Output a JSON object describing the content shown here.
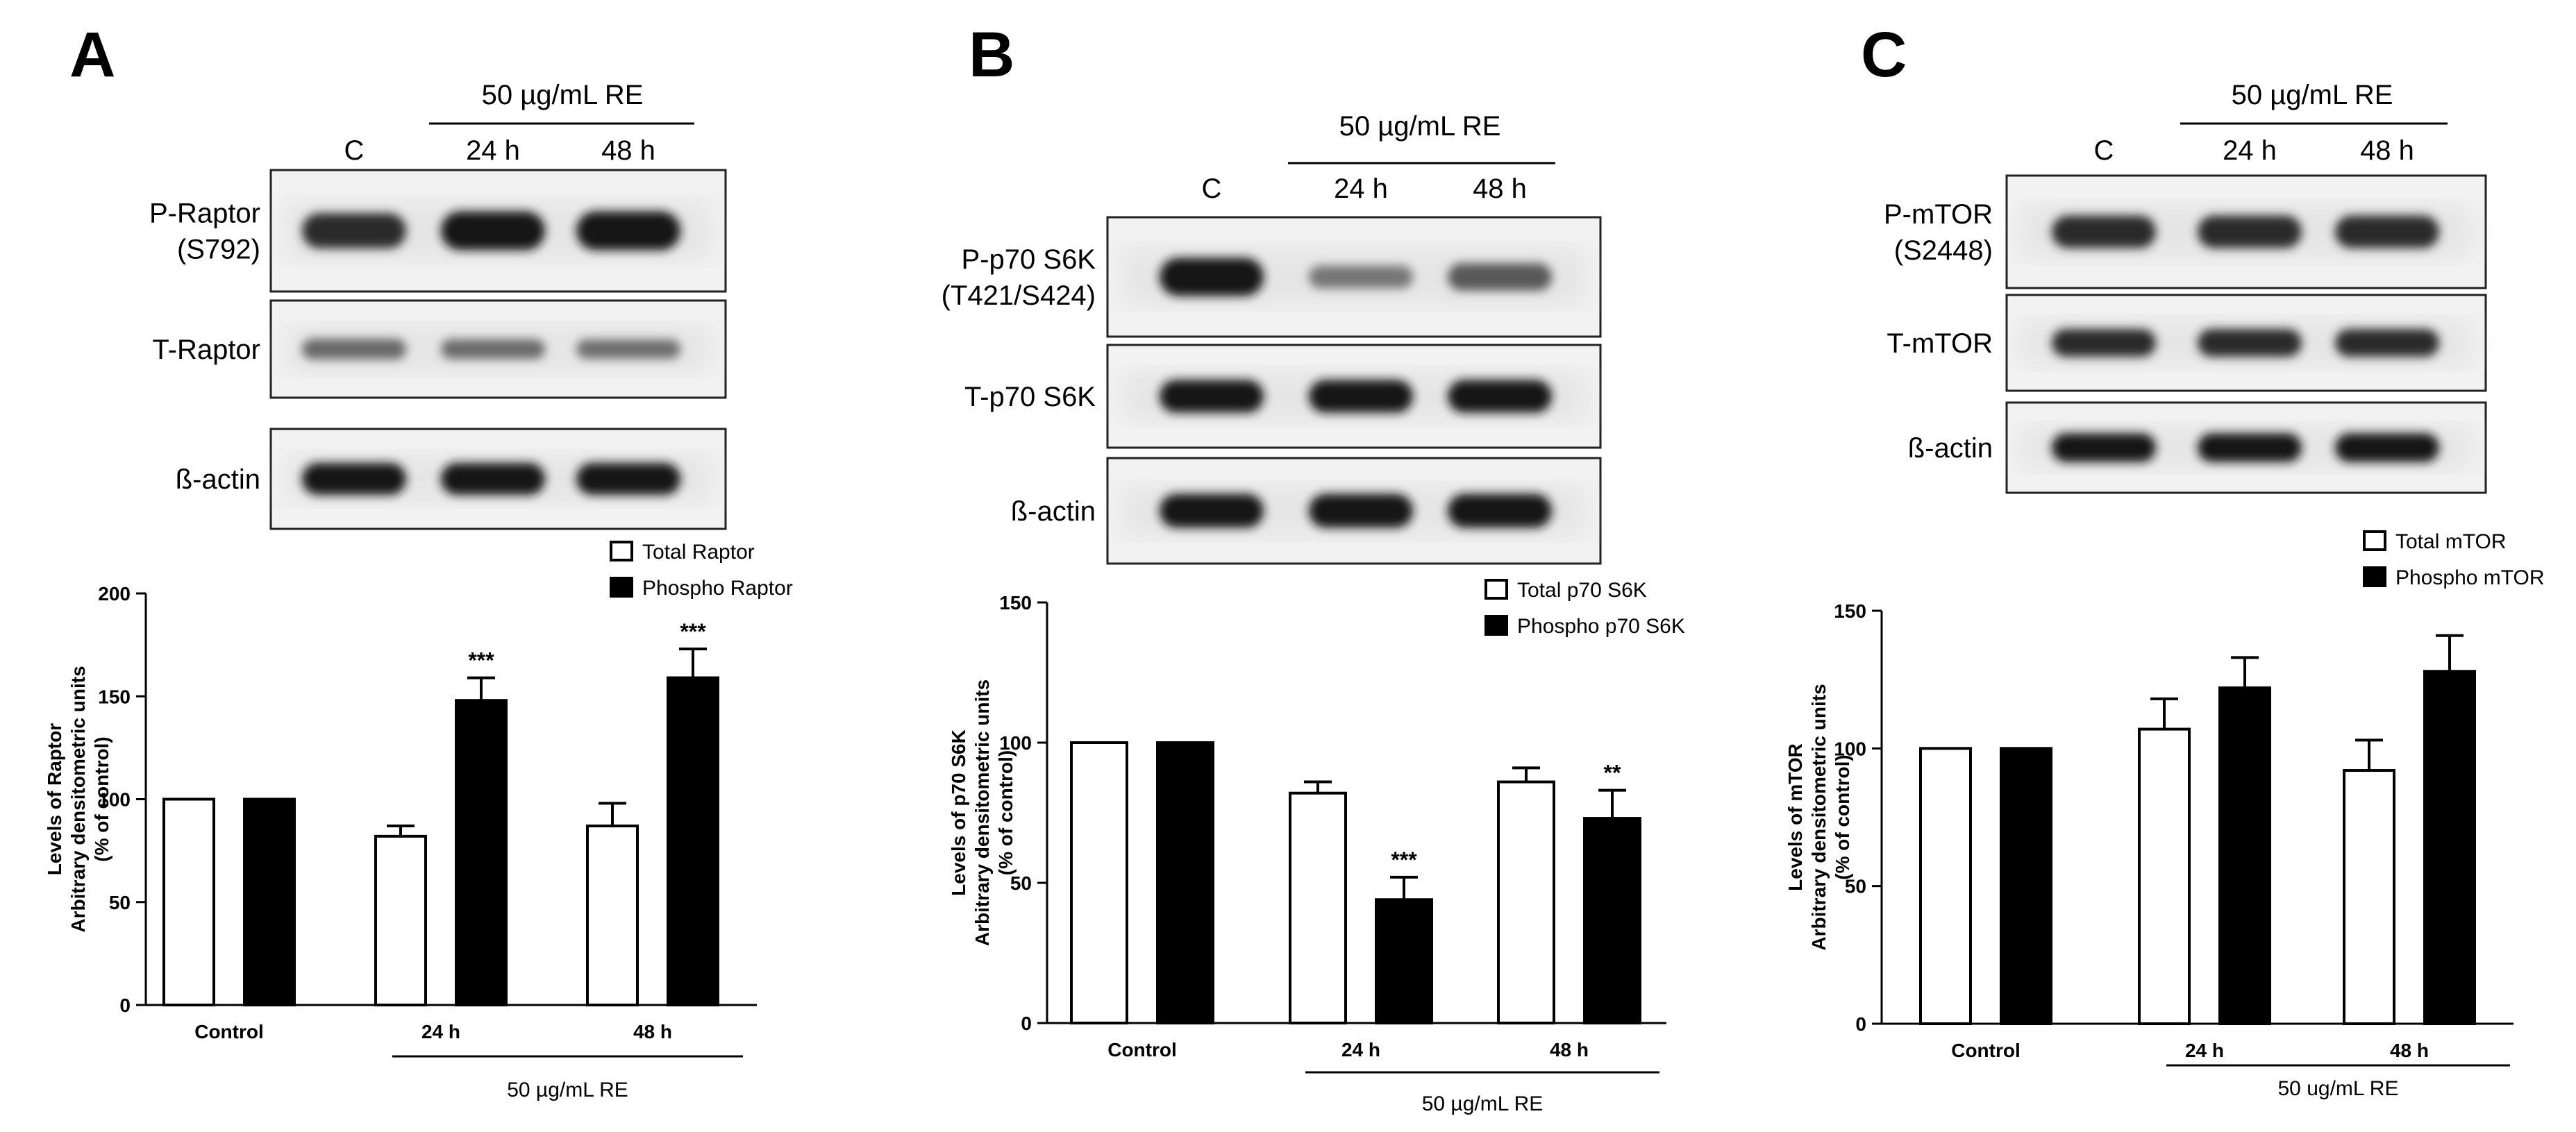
{
  "panels": [
    {
      "letter": "A",
      "treatment_label": "50 µg/mL RE",
      "lanes": [
        "C",
        "24 h",
        "48 h"
      ],
      "blots": [
        {
          "label_lines": [
            "P-Raptor",
            "(S792)"
          ],
          "band_intensity": [
            0.85,
            1.0,
            1.0
          ]
        },
        {
          "label_lines": [
            "T-Raptor"
          ],
          "band_intensity": [
            0.45,
            0.42,
            0.4
          ]
        },
        {
          "label_lines": [
            "ß-actin"
          ],
          "band_intensity": [
            1.0,
            1.0,
            1.0
          ]
        }
      ]
    },
    {
      "letter": "B",
      "treatment_label": "50 µg/mL RE",
      "lanes": [
        "C",
        "24 h",
        "48 h"
      ],
      "blots": [
        {
          "label_lines": [
            "P-p70 S6K",
            "(T421/S424)"
          ],
          "band_intensity": [
            1.0,
            0.35,
            0.55
          ]
        },
        {
          "label_lines": [
            "T-p70 S6K"
          ],
          "band_intensity": [
            1.0,
            1.0,
            1.0
          ]
        },
        {
          "label_lines": [
            "ß-actin"
          ],
          "band_intensity": [
            1.0,
            1.0,
            1.0
          ]
        }
      ]
    },
    {
      "letter": "C",
      "treatment_label": "50 µg/mL RE",
      "lanes": [
        "C",
        "24 h",
        "48 h"
      ],
      "blots": [
        {
          "label_lines": [
            "P-mTOR",
            "(S2448)"
          ],
          "band_intensity": [
            0.85,
            0.85,
            0.85
          ]
        },
        {
          "label_lines": [
            "T-mTOR"
          ],
          "band_intensity": [
            0.85,
            0.85,
            0.85
          ]
        },
        {
          "label_lines": [
            "ß-actin"
          ],
          "band_intensity": [
            1.0,
            1.0,
            1.0
          ]
        }
      ]
    }
  ],
  "chart_data": [
    {
      "type": "bar",
      "panel": "A",
      "categories": [
        "Control",
        "24 h",
        "48 h"
      ],
      "group_label": "50 µg/mL RE",
      "ylabel_lines": [
        "Levels of Raptor",
        "Arbitrary densitometric units",
        "(% of control)"
      ],
      "ylim": [
        0,
        200
      ],
      "yticks": [
        0,
        50,
        100,
        150,
        200
      ],
      "series": [
        {
          "name": "Total Raptor",
          "fill": "#ffffff",
          "values": [
            100,
            82,
            87
          ],
          "errors": [
            0,
            5,
            11
          ],
          "significance": [
            "",
            "",
            ""
          ]
        },
        {
          "name": "Phospho Raptor",
          "fill": "#000000",
          "values": [
            100,
            148,
            159
          ],
          "errors": [
            0,
            11,
            14
          ],
          "significance": [
            "",
            "***",
            "***"
          ]
        }
      ],
      "legend": "top-right"
    },
    {
      "type": "bar",
      "panel": "B",
      "categories": [
        "Control",
        "24 h",
        "48 h"
      ],
      "group_label": "50 µg/mL RE",
      "ylabel_lines": [
        "Levels of p70 S6K",
        "Arbitrary densitometric units",
        "(% of control)"
      ],
      "ylim": [
        0,
        150
      ],
      "yticks": [
        0,
        50,
        100,
        150
      ],
      "series": [
        {
          "name": "Total p70 S6K",
          "fill": "#ffffff",
          "values": [
            100,
            82,
            86
          ],
          "errors": [
            0,
            4,
            5
          ],
          "significance": [
            "",
            "",
            ""
          ]
        },
        {
          "name": "Phospho p70 S6K",
          "fill": "#000000",
          "values": [
            100,
            44,
            73
          ],
          "errors": [
            0,
            8,
            10
          ],
          "significance": [
            "",
            "***",
            "**"
          ]
        }
      ],
      "legend": "top-right"
    },
    {
      "type": "bar",
      "panel": "C",
      "categories": [
        "Control",
        "24 h",
        "48 h"
      ],
      "group_label": "50 ug/mL RE",
      "ylabel_lines": [
        "Levels of mTOR",
        "Arbitrary densitometric units",
        "(% of control)"
      ],
      "ylim": [
        0,
        150
      ],
      "yticks": [
        0,
        50,
        100,
        150
      ],
      "series": [
        {
          "name": "Total mTOR",
          "fill": "#ffffff",
          "values": [
            100,
            107,
            92
          ],
          "errors": [
            0,
            11,
            11
          ],
          "significance": [
            "",
            "",
            ""
          ]
        },
        {
          "name": "Phospho mTOR",
          "fill": "#000000",
          "values": [
            100,
            122,
            128
          ],
          "errors": [
            0,
            11,
            13
          ],
          "significance": [
            "",
            "",
            ""
          ]
        }
      ],
      "legend": "top-right"
    }
  ]
}
